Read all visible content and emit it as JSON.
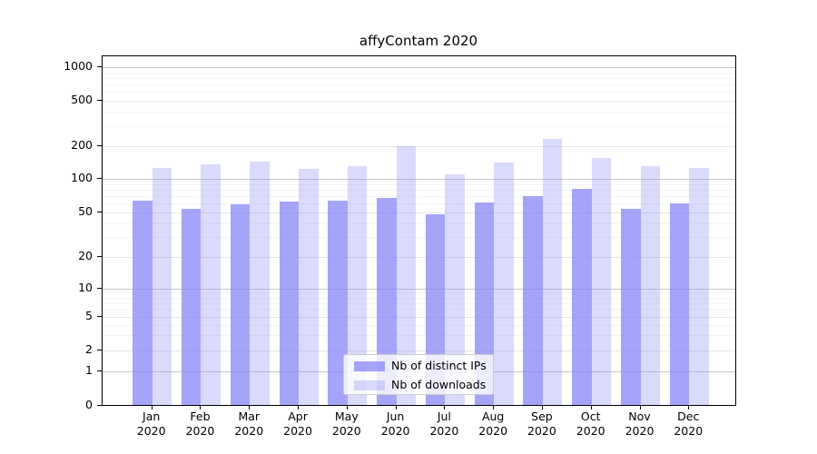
{
  "title": "affyContam 2020",
  "chart_data": {
    "type": "bar",
    "title": "affyContam 2020",
    "x_axis": {
      "categories": [
        "Jan",
        "Feb",
        "Mar",
        "Apr",
        "May",
        "Jun",
        "Jul",
        "Aug",
        "Sep",
        "Oct",
        "Nov",
        "Dec"
      ],
      "category_subline": "2020"
    },
    "y_axis": {
      "scale": "symlog",
      "ticks": [
        0,
        1,
        2,
        5,
        10,
        20,
        50,
        100,
        200,
        500,
        1000
      ],
      "minor_ticks": [
        3,
        4,
        6,
        7,
        8,
        9,
        30,
        40,
        60,
        70,
        80,
        90,
        300,
        400,
        600,
        700,
        800,
        900
      ],
      "range": [
        0,
        1400
      ],
      "grid": true
    },
    "series": [
      {
        "name": "Nb of distinct IPs",
        "values": [
          63,
          54,
          59,
          62,
          63,
          67,
          48,
          61,
          70,
          81,
          54,
          60
        ]
      },
      {
        "name": "Nb of downloads",
        "values": [
          126,
          135,
          145,
          123,
          131,
          199,
          110,
          140,
          230,
          155,
          132,
          125
        ]
      }
    ],
    "legend": {
      "position": "bottom-center",
      "entries": [
        "Nb of distinct IPs",
        "Nb of downloads"
      ]
    }
  },
  "colors": {
    "bar_distinct_ips": "rgba(134,134,245,0.75)",
    "bar_downloads": "rgba(134,134,245,0.30)",
    "grid_decade": "#c8c8c8",
    "grid_major": "#e6e6e6",
    "grid_minor": "#f4f4f4",
    "spine": "#000000"
  }
}
